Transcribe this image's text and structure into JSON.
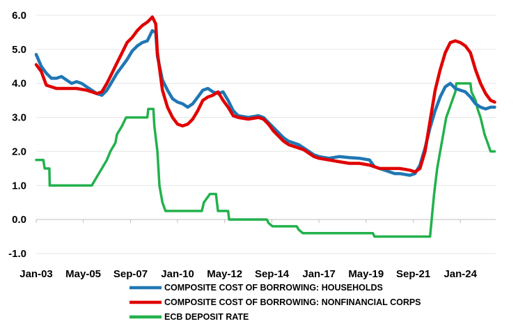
{
  "chart_data": {
    "type": "line",
    "title": "",
    "xlabel": "",
    "ylabel": "",
    "ylim": [
      -1.0,
      6.0
    ],
    "xlim": [
      2003.0,
      2025.75
    ],
    "yticks": [
      {
        "value": 6.0,
        "label": "6.0"
      },
      {
        "value": 5.0,
        "label": "5.0"
      },
      {
        "value": 4.0,
        "label": "4.0"
      },
      {
        "value": 3.0,
        "label": "3.0"
      },
      {
        "value": 2.0,
        "label": "2.0"
      },
      {
        "value": 1.0,
        "label": "1.0"
      },
      {
        "value": 0.0,
        "label": "0.0"
      },
      {
        "value": -1.0,
        "label": "-1.0"
      }
    ],
    "xticks": [
      {
        "value": 2003.0,
        "label": "Jan-03"
      },
      {
        "value": 2005.33,
        "label": "May-05"
      },
      {
        "value": 2007.67,
        "label": "Sep-07"
      },
      {
        "value": 2010.0,
        "label": "Jan-10"
      },
      {
        "value": 2012.33,
        "label": "May-12"
      },
      {
        "value": 2014.67,
        "label": "Sep-14"
      },
      {
        "value": 2017.0,
        "label": "Jan-17"
      },
      {
        "value": 2019.33,
        "label": "May-19"
      },
      {
        "value": 2021.67,
        "label": "Sep-21"
      },
      {
        "value": 2024.0,
        "label": "Jan-24"
      }
    ],
    "legend_position": "bottom",
    "series": [
      {
        "name": "COMPOSITE COST OF BORROWING: HOUSEHOLDS",
        "color": "#1F77B4",
        "points": [
          [
            2003.0,
            4.85
          ],
          [
            2003.25,
            4.5
          ],
          [
            2003.5,
            4.3
          ],
          [
            2003.75,
            4.15
          ],
          [
            2004.0,
            4.15
          ],
          [
            2004.25,
            4.2
          ],
          [
            2004.5,
            4.1
          ],
          [
            2004.75,
            4.0
          ],
          [
            2005.0,
            4.05
          ],
          [
            2005.25,
            4.0
          ],
          [
            2005.5,
            3.9
          ],
          [
            2005.75,
            3.8
          ],
          [
            2006.0,
            3.7
          ],
          [
            2006.25,
            3.65
          ],
          [
            2006.5,
            3.8
          ],
          [
            2006.75,
            4.05
          ],
          [
            2007.0,
            4.3
          ],
          [
            2007.25,
            4.5
          ],
          [
            2007.5,
            4.7
          ],
          [
            2007.75,
            4.95
          ],
          [
            2008.0,
            5.1
          ],
          [
            2008.25,
            5.2
          ],
          [
            2008.5,
            5.25
          ],
          [
            2008.75,
            5.55
          ],
          [
            2008.92,
            5.5
          ],
          [
            2009.0,
            4.8
          ],
          [
            2009.25,
            4.1
          ],
          [
            2009.5,
            3.8
          ],
          [
            2009.75,
            3.55
          ],
          [
            2010.0,
            3.45
          ],
          [
            2010.25,
            3.4
          ],
          [
            2010.5,
            3.3
          ],
          [
            2010.75,
            3.4
          ],
          [
            2011.0,
            3.6
          ],
          [
            2011.25,
            3.8
          ],
          [
            2011.5,
            3.85
          ],
          [
            2011.75,
            3.75
          ],
          [
            2012.0,
            3.7
          ],
          [
            2012.25,
            3.75
          ],
          [
            2012.5,
            3.5
          ],
          [
            2012.75,
            3.2
          ],
          [
            2013.0,
            3.05
          ],
          [
            2013.5,
            3.0
          ],
          [
            2014.0,
            3.05
          ],
          [
            2014.25,
            3.0
          ],
          [
            2014.5,
            2.85
          ],
          [
            2014.75,
            2.7
          ],
          [
            2015.0,
            2.55
          ],
          [
            2015.25,
            2.4
          ],
          [
            2015.5,
            2.3
          ],
          [
            2015.75,
            2.25
          ],
          [
            2016.0,
            2.2
          ],
          [
            2016.25,
            2.1
          ],
          [
            2016.5,
            2.0
          ],
          [
            2016.75,
            1.9
          ],
          [
            2017.0,
            1.85
          ],
          [
            2017.5,
            1.8
          ],
          [
            2018.0,
            1.85
          ],
          [
            2018.5,
            1.82
          ],
          [
            2019.0,
            1.8
          ],
          [
            2019.5,
            1.75
          ],
          [
            2019.75,
            1.55
          ],
          [
            2020.0,
            1.5
          ],
          [
            2020.25,
            1.45
          ],
          [
            2020.5,
            1.4
          ],
          [
            2020.75,
            1.35
          ],
          [
            2021.0,
            1.35
          ],
          [
            2021.5,
            1.3
          ],
          [
            2021.75,
            1.35
          ],
          [
            2022.0,
            1.6
          ],
          [
            2022.25,
            2.1
          ],
          [
            2022.5,
            2.7
          ],
          [
            2022.75,
            3.2
          ],
          [
            2023.0,
            3.6
          ],
          [
            2023.25,
            3.9
          ],
          [
            2023.5,
            4.0
          ],
          [
            2023.75,
            3.85
          ],
          [
            2024.0,
            3.8
          ],
          [
            2024.25,
            3.75
          ],
          [
            2024.5,
            3.6
          ],
          [
            2024.75,
            3.4
          ],
          [
            2025.0,
            3.3
          ],
          [
            2025.25,
            3.25
          ],
          [
            2025.5,
            3.3
          ],
          [
            2025.7,
            3.3
          ]
        ]
      },
      {
        "name": "COMPOSITE COST OF BORROWING: NONFINANCIAL CORPS",
        "color": "#E00000",
        "points": [
          [
            2003.0,
            4.55
          ],
          [
            2003.25,
            4.35
          ],
          [
            2003.5,
            3.95
          ],
          [
            2003.75,
            3.9
          ],
          [
            2004.0,
            3.85
          ],
          [
            2004.5,
            3.85
          ],
          [
            2005.0,
            3.85
          ],
          [
            2005.5,
            3.8
          ],
          [
            2005.75,
            3.75
          ],
          [
            2006.0,
            3.7
          ],
          [
            2006.25,
            3.75
          ],
          [
            2006.5,
            4.0
          ],
          [
            2006.75,
            4.3
          ],
          [
            2007.0,
            4.6
          ],
          [
            2007.25,
            4.9
          ],
          [
            2007.5,
            5.2
          ],
          [
            2007.75,
            5.35
          ],
          [
            2008.0,
            5.55
          ],
          [
            2008.25,
            5.7
          ],
          [
            2008.5,
            5.8
          ],
          [
            2008.75,
            5.95
          ],
          [
            2008.92,
            5.75
          ],
          [
            2009.0,
            4.9
          ],
          [
            2009.25,
            3.8
          ],
          [
            2009.5,
            3.3
          ],
          [
            2009.75,
            3.0
          ],
          [
            2010.0,
            2.8
          ],
          [
            2010.25,
            2.75
          ],
          [
            2010.5,
            2.8
          ],
          [
            2010.75,
            2.95
          ],
          [
            2011.0,
            3.2
          ],
          [
            2011.25,
            3.5
          ],
          [
            2011.5,
            3.6
          ],
          [
            2011.75,
            3.65
          ],
          [
            2012.0,
            3.75
          ],
          [
            2012.25,
            3.5
          ],
          [
            2012.5,
            3.3
          ],
          [
            2012.75,
            3.05
          ],
          [
            2013.0,
            3.0
          ],
          [
            2013.5,
            2.95
          ],
          [
            2014.0,
            3.0
          ],
          [
            2014.25,
            2.95
          ],
          [
            2014.5,
            2.8
          ],
          [
            2014.75,
            2.6
          ],
          [
            2015.0,
            2.45
          ],
          [
            2015.25,
            2.3
          ],
          [
            2015.5,
            2.2
          ],
          [
            2015.75,
            2.15
          ],
          [
            2016.0,
            2.1
          ],
          [
            2016.25,
            2.05
          ],
          [
            2016.5,
            1.95
          ],
          [
            2016.75,
            1.85
          ],
          [
            2017.0,
            1.8
          ],
          [
            2017.5,
            1.75
          ],
          [
            2018.0,
            1.7
          ],
          [
            2018.5,
            1.65
          ],
          [
            2019.0,
            1.65
          ],
          [
            2019.5,
            1.6
          ],
          [
            2019.75,
            1.55
          ],
          [
            2020.0,
            1.5
          ],
          [
            2020.5,
            1.5
          ],
          [
            2021.0,
            1.5
          ],
          [
            2021.5,
            1.45
          ],
          [
            2021.75,
            1.4
          ],
          [
            2022.0,
            1.5
          ],
          [
            2022.25,
            2.0
          ],
          [
            2022.5,
            2.9
          ],
          [
            2022.75,
            3.8
          ],
          [
            2023.0,
            4.4
          ],
          [
            2023.25,
            4.9
          ],
          [
            2023.5,
            5.2
          ],
          [
            2023.75,
            5.25
          ],
          [
            2024.0,
            5.2
          ],
          [
            2024.25,
            5.1
          ],
          [
            2024.5,
            4.9
          ],
          [
            2024.75,
            4.4
          ],
          [
            2025.0,
            4.0
          ],
          [
            2025.25,
            3.7
          ],
          [
            2025.5,
            3.5
          ],
          [
            2025.7,
            3.45
          ]
        ]
      },
      {
        "name": "ECB DEPOSIT RATE",
        "color": "#22B14C",
        "points": [
          [
            2003.0,
            1.75
          ],
          [
            2003.35,
            1.75
          ],
          [
            2003.42,
            1.5
          ],
          [
            2003.65,
            1.5
          ],
          [
            2003.67,
            1.0
          ],
          [
            2005.75,
            1.0
          ],
          [
            2006.0,
            1.25
          ],
          [
            2006.25,
            1.5
          ],
          [
            2006.5,
            1.75
          ],
          [
            2006.67,
            2.0
          ],
          [
            2006.92,
            2.25
          ],
          [
            2007.0,
            2.5
          ],
          [
            2007.25,
            2.75
          ],
          [
            2007.45,
            3.0
          ],
          [
            2008.5,
            3.0
          ],
          [
            2008.55,
            3.25
          ],
          [
            2008.8,
            3.25
          ],
          [
            2008.85,
            2.75
          ],
          [
            2009.0,
            2.0
          ],
          [
            2009.1,
            1.0
          ],
          [
            2009.25,
            0.5
          ],
          [
            2009.4,
            0.25
          ],
          [
            2011.2,
            0.25
          ],
          [
            2011.3,
            0.5
          ],
          [
            2011.6,
            0.75
          ],
          [
            2011.9,
            0.75
          ],
          [
            2011.95,
            0.5
          ],
          [
            2012.0,
            0.25
          ],
          [
            2012.5,
            0.25
          ],
          [
            2012.55,
            0.0
          ],
          [
            2014.42,
            0.0
          ],
          [
            2014.5,
            -0.1
          ],
          [
            2014.7,
            -0.2
          ],
          [
            2015.9,
            -0.2
          ],
          [
            2016.0,
            -0.3
          ],
          [
            2016.2,
            -0.4
          ],
          [
            2019.67,
            -0.4
          ],
          [
            2019.75,
            -0.5
          ],
          [
            2022.5,
            -0.5
          ],
          [
            2022.58,
            0.0
          ],
          [
            2022.7,
            0.75
          ],
          [
            2022.85,
            1.5
          ],
          [
            2023.0,
            2.0
          ],
          [
            2023.15,
            2.5
          ],
          [
            2023.3,
            3.0
          ],
          [
            2023.45,
            3.25
          ],
          [
            2023.6,
            3.5
          ],
          [
            2023.75,
            3.75
          ],
          [
            2023.8,
            4.0
          ],
          [
            2024.5,
            4.0
          ],
          [
            2024.55,
            3.75
          ],
          [
            2024.75,
            3.5
          ],
          [
            2024.85,
            3.25
          ],
          [
            2025.0,
            3.0
          ],
          [
            2025.1,
            2.75
          ],
          [
            2025.2,
            2.5
          ],
          [
            2025.35,
            2.25
          ],
          [
            2025.5,
            2.0
          ],
          [
            2025.7,
            2.0
          ]
        ]
      }
    ]
  }
}
